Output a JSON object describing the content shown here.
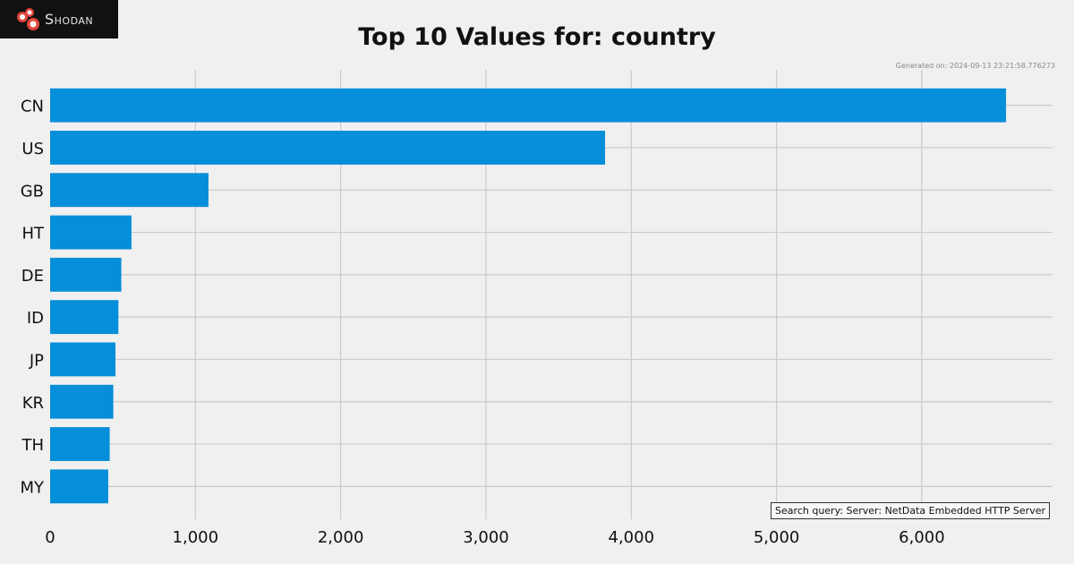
{
  "brand": {
    "name": "Shodan",
    "icon": "shodan-logo-icon"
  },
  "generated_text": "Generated on: 2024-09-13 23:21:58.776273",
  "search_query": "Search query: Server: NetData Embedded HTTP Server",
  "colors": {
    "bar": "#058ed9",
    "background": "#f0f0f0",
    "grid": "#cbcbcb",
    "logo_bg": "#111111",
    "logo_accent": "#e0463b"
  },
  "chart_data": {
    "type": "bar",
    "orientation": "horizontal",
    "title": "Top 10 Values for: country",
    "categories": [
      "CN",
      "US",
      "GB",
      "HT",
      "DE",
      "ID",
      "JP",
      "KR",
      "TH",
      "MY"
    ],
    "values": [
      6580,
      3820,
      1090,
      560,
      490,
      470,
      450,
      435,
      410,
      400
    ],
    "xlim": [
      0,
      6900
    ],
    "xticks": [
      0,
      1000,
      2000,
      3000,
      4000,
      5000,
      6000
    ],
    "xtick_labels": [
      "0",
      "1,000",
      "2,000",
      "3,000",
      "4,000",
      "5,000",
      "6,000"
    ],
    "grid": true
  }
}
